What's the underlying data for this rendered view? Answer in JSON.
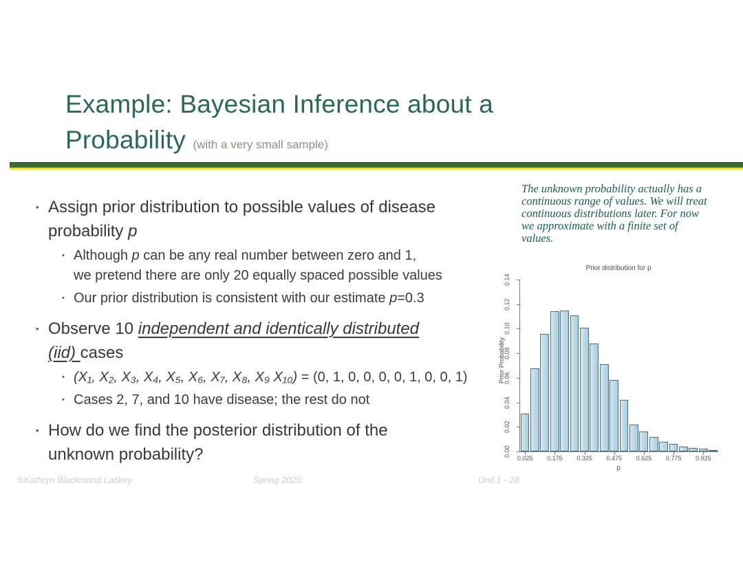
{
  "slide": {
    "title": {
      "line1": "Example: Bayesian Inference about a",
      "line2": "Probability",
      "suffix": "(with a very small sample)"
    },
    "note": "The unknown probability actually has a continuous range of values. We will treat continuous distributions later. For now we approximate with a finite set of values.",
    "bullets": [
      {
        "level": 1,
        "segments": [
          {
            "t": "Assign prior distribution to possible values of disease"
          },
          {
            "br": true
          },
          {
            "t": "probability "
          },
          {
            "t": "p",
            "c": "it"
          }
        ]
      },
      {
        "level": 2,
        "segments": [
          {
            "t": "Although "
          },
          {
            "t": "p",
            "c": "it"
          },
          {
            "t": " can be any real number between zero and 1,"
          },
          {
            "br": true
          },
          {
            "t": "we pretend there are only 20 equally spaced possible values"
          }
        ]
      },
      {
        "level": 2,
        "segments": [
          {
            "t": "Our prior distribution is consistent with our estimate "
          },
          {
            "t": "p",
            "c": "it"
          },
          {
            "t": "=0.3"
          }
        ]
      },
      {
        "level": 1,
        "segments": [
          {
            "t": "Observe 10 "
          },
          {
            "t": "independent and identically distributed",
            "c": "itu"
          },
          {
            "br": true
          },
          {
            "t": "(iid) ",
            "c": "itu"
          },
          {
            "t": "cases"
          }
        ]
      },
      {
        "level": 2,
        "segments": [
          {
            "t": "(X₁, X₂, X₃, X₄, X₅, X₆, X₇, X₈, X₉ X₁₀)",
            "c": "it"
          },
          {
            "t": " = (0, 1, 0, 0, 0, 0, 1, 0, 0, 1)"
          }
        ]
      },
      {
        "level": 2,
        "segments": [
          {
            "t": "Cases 2, 7, and 10 have disease; the rest do not"
          }
        ]
      },
      {
        "level": 1,
        "segments": [
          {
            "t": "How do we find the posterior distribution of the"
          },
          {
            "br": true
          },
          {
            "t": "unknown probability?"
          }
        ]
      }
    ],
    "footer": {
      "left": "©Kathryn Blackmond Laskey",
      "center": "Spring 2020",
      "right": "Unit 1 - 28"
    }
  },
  "colors": {
    "title_green": "#2d6852",
    "note_green": "#1f604a",
    "rule_green": "#3c6b33",
    "rule_yellow": "#e8e243",
    "body_text": "#383838",
    "footer_text": "#c9cfd8",
    "bar_fill": "#b9d8e6",
    "bar_border": "#54707e"
  },
  "chart_data": {
    "type": "bar",
    "title": "Prior distribution for p",
    "xlabel": "p",
    "ylabel": "Prior Probability",
    "x": [
      0.025,
      0.075,
      0.125,
      0.175,
      0.225,
      0.275,
      0.325,
      0.375,
      0.425,
      0.475,
      0.525,
      0.575,
      0.625,
      0.675,
      0.725,
      0.775,
      0.825,
      0.875,
      0.925,
      0.975
    ],
    "values": [
      0.031,
      0.068,
      0.096,
      0.114,
      0.115,
      0.111,
      0.101,
      0.088,
      0.071,
      0.058,
      0.042,
      0.022,
      0.016,
      0.012,
      0.008,
      0.006,
      0.004,
      0.003,
      0.002,
      0.001
    ],
    "x_ticks": [
      "0.025",
      "0.175",
      "0.325",
      "0.475",
      "0.625",
      "0.775",
      "0.925"
    ],
    "y_ticks": [
      "0.00",
      "0.02",
      "0.04",
      "0.06",
      "0.08",
      "0.10",
      "0.12",
      "0.14"
    ],
    "ylim": [
      0,
      0.14
    ],
    "grid": false,
    "legend": "none"
  }
}
